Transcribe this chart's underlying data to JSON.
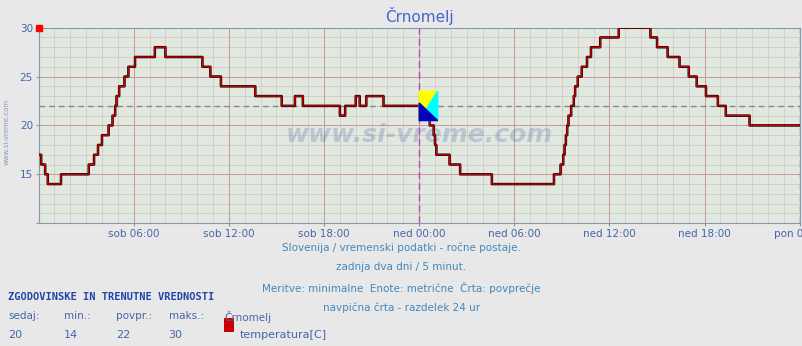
{
  "title": "Črnomelj",
  "bg_color": "#e8e8e8",
  "plot_bg_color": "#e0e8e0",
  "line_color": "#cc0000",
  "line_color2": "#000000",
  "grid_v_color": "#d0a0a0",
  "grid_h_color": "#d0a0a0",
  "avg_line_color": "#888888",
  "avg_value": 22,
  "ymin": 10,
  "ymax": 30,
  "xlabel_color": "#4466aa",
  "title_color": "#4466cc",
  "subtitle_color": "#4488bb",
  "xtick_labels": [
    "sob 06:00",
    "sob 12:00",
    "sob 18:00",
    "ned 00:00",
    "ned 06:00",
    "ned 12:00",
    "ned 18:00",
    "pon 00:00"
  ],
  "vline_color_24h": "#bb44bb",
  "watermark_text": "www.si-vreme.com",
  "watermark_color": "#4466aa",
  "watermark_alpha": 0.25,
  "sidebar_text": "www.si-vreme.com",
  "footer_lines": [
    "Slovenija / vremenski podatki - ročne postaje.",
    "zadnja dva dni / 5 minut.",
    "Meritve: minimalne  Enote: metrične  Črta: povprečje",
    "navpična črta - razdelek 24 ur"
  ],
  "legend_header": "ZGODOVINSKE IN TRENUTNE VREDNOSTI",
  "legend_cols": [
    "sedaj:",
    "min.:",
    "povpr.:",
    "maks.:",
    "Črnomelj"
  ],
  "legend_vals": [
    "20",
    "14",
    "22",
    "30",
    "temperatura[C]"
  ],
  "temperature_data": [
    17,
    17,
    16,
    16,
    16,
    15,
    15,
    14,
    14,
    14,
    14,
    14,
    14,
    14,
    14,
    14,
    14,
    15,
    15,
    15,
    15,
    15,
    15,
    15,
    15,
    15,
    15,
    15,
    15,
    15,
    15,
    15,
    15,
    15,
    15,
    15,
    15,
    15,
    16,
    16,
    16,
    16,
    17,
    17,
    17,
    18,
    18,
    18,
    19,
    19,
    19,
    19,
    19,
    20,
    20,
    20,
    21,
    21,
    22,
    23,
    23,
    24,
    24,
    24,
    24,
    25,
    25,
    25,
    26,
    26,
    26,
    26,
    26,
    27,
    27,
    27,
    27,
    27,
    27,
    27,
    27,
    27,
    27,
    27,
    27,
    27,
    27,
    27,
    28,
    28,
    28,
    28,
    28,
    28,
    28,
    28,
    27,
    27,
    27,
    27,
    27,
    27,
    27,
    27,
    27,
    27,
    27,
    27,
    27,
    27,
    27,
    27,
    27,
    27,
    27,
    27,
    27,
    27,
    27,
    27,
    27,
    27,
    27,
    27,
    26,
    26,
    26,
    26,
    26,
    26,
    25,
    25,
    25,
    25,
    25,
    25,
    25,
    25,
    24,
    24,
    24,
    24,
    24,
    24,
    24,
    24,
    24,
    24,
    24,
    24,
    24,
    24,
    24,
    24,
    24,
    24,
    24,
    24,
    24,
    24,
    24,
    24,
    24,
    24,
    23,
    23,
    23,
    23,
    23,
    23,
    23,
    23,
    23,
    23,
    23,
    23,
    23,
    23,
    23,
    23,
    23,
    23,
    23,
    23,
    22,
    22,
    22,
    22,
    22,
    22,
    22,
    22,
    22,
    22,
    23,
    23,
    23,
    23,
    23,
    23,
    22,
    22,
    22,
    22,
    22,
    22,
    22,
    22,
    22,
    22,
    22,
    22,
    22,
    22,
    22,
    22,
    22,
    22,
    22,
    22,
    22,
    22,
    22,
    22,
    22,
    22,
    22,
    22,
    21,
    21,
    21,
    21,
    22,
    22,
    22,
    22,
    22,
    22,
    22,
    22,
    23,
    23,
    23,
    22,
    22,
    22,
    22,
    22,
    23,
    23,
    23,
    23,
    23,
    23,
    23,
    23,
    23,
    23,
    23,
    23,
    23,
    22,
    22,
    22,
    22,
    22,
    22,
    22,
    22,
    22,
    22,
    22,
    22,
    22,
    22,
    22,
    22,
    22,
    22,
    22,
    22,
    22,
    22,
    22,
    22,
    22,
    22,
    22,
    22,
    22,
    21,
    21,
    21,
    21,
    21,
    21,
    20,
    20,
    20,
    19,
    18,
    17,
    17,
    17,
    17,
    17,
    17,
    17,
    17,
    17,
    17,
    16,
    16,
    16,
    16,
    16,
    16,
    16,
    16,
    15,
    15,
    15,
    15,
    15,
    15,
    15,
    15,
    15,
    15,
    15,
    15,
    15,
    15,
    15,
    15,
    15,
    15,
    15,
    15,
    15,
    15,
    15,
    15,
    14,
    14,
    14,
    14,
    14,
    14,
    14,
    14,
    14,
    14,
    14,
    14,
    14,
    14,
    14,
    14,
    14,
    14,
    14,
    14,
    14,
    14,
    14,
    14,
    14,
    14,
    14,
    14,
    14,
    14,
    14,
    14,
    14,
    14,
    14,
    14,
    14,
    14,
    14,
    14,
    14,
    14,
    14,
    14,
    14,
    14,
    14,
    15,
    15,
    15,
    15,
    15,
    16,
    16,
    17,
    18,
    19,
    20,
    21,
    21,
    22,
    22,
    23,
    24,
    24,
    25,
    25,
    25,
    26,
    26,
    26,
    26,
    27,
    27,
    27,
    28,
    28,
    28,
    28,
    28,
    28,
    28,
    29,
    29,
    29,
    29,
    29,
    29,
    29,
    29,
    29,
    29,
    29,
    29,
    29,
    29,
    30,
    30,
    30,
    30,
    30,
    30,
    30,
    30,
    30,
    30,
    30,
    30,
    30,
    30,
    30,
    30,
    30,
    30,
    30,
    30,
    30,
    30,
    30,
    30,
    29,
    29,
    29,
    29,
    29,
    28,
    28,
    28,
    28,
    28,
    28,
    28,
    28,
    27,
    27,
    27,
    27,
    27,
    27,
    27,
    27,
    27,
    26,
    26,
    26,
    26,
    26,
    26,
    26,
    25,
    25,
    25,
    25,
    25,
    25,
    24,
    24,
    24,
    24,
    24,
    24,
    24,
    23,
    23,
    23,
    23,
    23,
    23,
    23,
    23,
    23,
    22,
    22,
    22,
    22,
    22,
    22,
    21,
    21,
    21,
    21,
    21,
    21,
    21,
    21,
    21,
    21,
    21,
    21,
    21,
    21,
    21,
    21,
    21,
    21,
    20,
    20,
    20,
    20,
    20,
    20,
    20,
    20,
    20,
    20,
    20,
    20,
    20,
    20,
    20,
    20,
    20,
    20,
    20,
    20,
    20,
    20,
    20,
    20,
    20,
    20,
    20,
    20,
    20,
    20,
    20,
    20,
    20,
    20,
    20,
    20,
    20,
    20,
    20,
    20,
    20,
    20,
    20,
    20
  ]
}
